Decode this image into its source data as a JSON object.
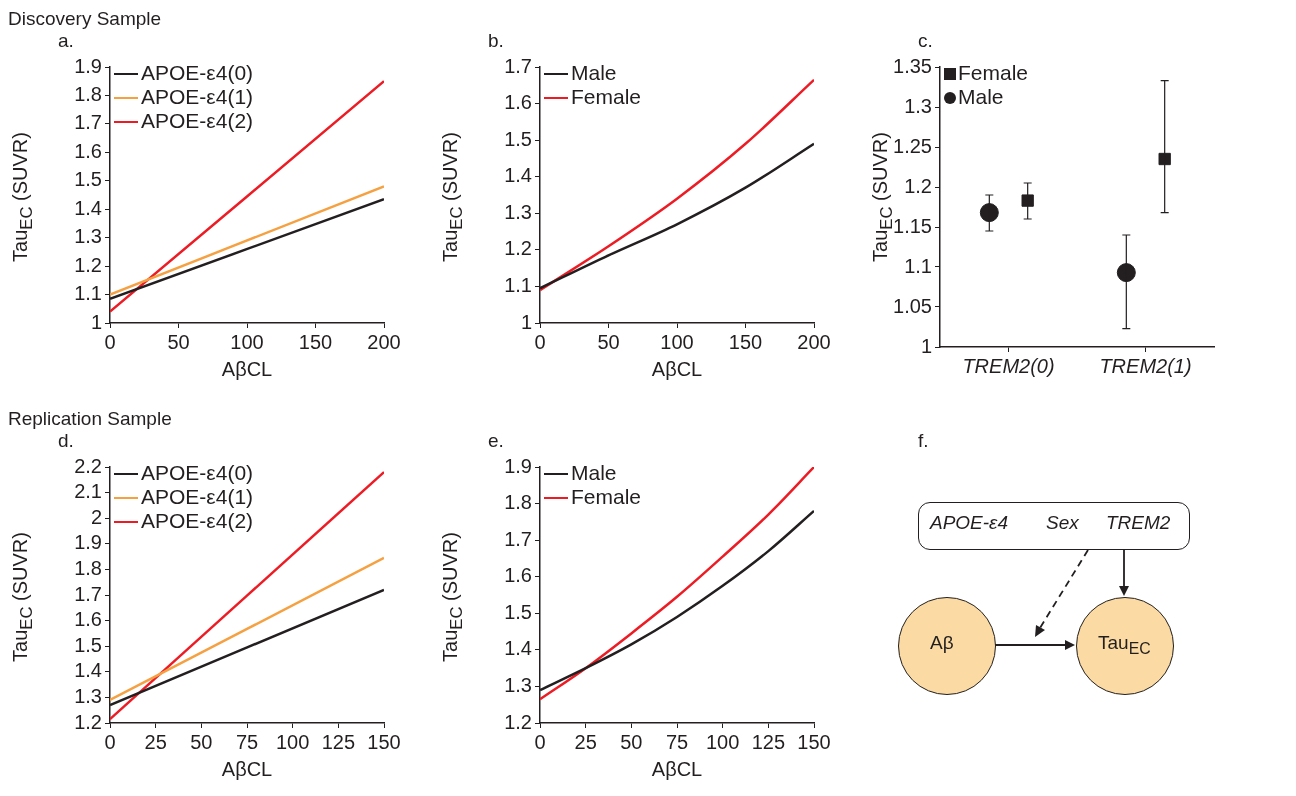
{
  "chart_data": [
    {
      "type": "line",
      "title": "a.",
      "annotations": [
        "Discovery Sample"
      ],
      "xlabel": "AβCL",
      "ylabel": "Tau$_{EC}$ (SUVR)",
      "xlim": [
        0,
        200
      ],
      "xticks": [
        0,
        50,
        100,
        150,
        200
      ],
      "ylim": [
        1,
        1.9
      ],
      "yticks": [
        1,
        1.1,
        1.2,
        1.3,
        1.4,
        1.5,
        1.6,
        1.7,
        1.8,
        1.9
      ],
      "legend": "top left",
      "marker": "none",
      "series": [
        {
          "name": "APOE-ε4(0)",
          "color": "#231f20",
          "x": [
            0,
            200
          ],
          "values": [
            1.085,
            1.435
          ]
        },
        {
          "name": "APOE-ε4(1)",
          "color": "#f5a142",
          "x": [
            0,
            200
          ],
          "values": [
            1.1,
            1.48
          ]
        },
        {
          "name": "APOE-ε4(2)",
          "color": "#ed1c24",
          "x": [
            0,
            200
          ],
          "values": [
            1.04,
            1.85
          ]
        }
      ]
    },
    {
      "type": "line",
      "title": "b.",
      "xlabel": "AβCL",
      "ylabel": "Tau$_{EC}$ (SUVR)",
      "xlim": [
        0,
        200
      ],
      "xticks": [
        0,
        50,
        100,
        150,
        200
      ],
      "ylim": [
        1,
        1.7
      ],
      "yticks": [
        1,
        1.1,
        1.2,
        1.3,
        1.4,
        1.5,
        1.6,
        1.7
      ],
      "legend": "top left",
      "marker": "none",
      "series": [
        {
          "name": "Male",
          "color": "#231f20",
          "x": [
            0,
            50,
            100,
            150,
            200
          ],
          "values": [
            1.095,
            1.185,
            1.27,
            1.37,
            1.49
          ]
        },
        {
          "name": "Female",
          "color": "#ed1c24",
          "x": [
            0,
            50,
            100,
            150,
            200
          ],
          "values": [
            1.09,
            1.21,
            1.34,
            1.49,
            1.665
          ]
        }
      ]
    },
    {
      "type": "scatter",
      "title": "c.",
      "ylabel": "Tau$_{EC}$ (SUVR)",
      "categories": [
        "TREM2(0)",
        "TREM2(1)"
      ],
      "ylim": [
        1,
        1.35
      ],
      "yticks": [
        1,
        1.05,
        1.1,
        1.15,
        1.2,
        1.25,
        1.3,
        1.35
      ],
      "legend": "top left",
      "series": [
        {
          "name": "Female",
          "color": "#231f20",
          "marker": "square",
          "values": [
            1.183,
            1.235
          ],
          "errors": [
            [
              1.16,
              1.205
            ],
            [
              1.168,
              1.333
            ]
          ]
        },
        {
          "name": "Male",
          "color": "#231f20",
          "marker": "circle",
          "values": [
            1.168,
            1.093
          ],
          "errors": [
            [
              1.145,
              1.19
            ],
            [
              1.023,
              1.14
            ]
          ]
        }
      ]
    },
    {
      "type": "line",
      "title": "d.",
      "annotations": [
        "Replication Sample"
      ],
      "xlabel": "AβCL",
      "ylabel": "Tau$_{EC}$ (SUVR)",
      "xlim": [
        0,
        150
      ],
      "xticks": [
        0,
        25,
        50,
        75,
        100,
        125,
        150
      ],
      "ylim": [
        1.2,
        2.2
      ],
      "yticks": [
        1.2,
        1.3,
        1.4,
        1.5,
        1.6,
        1.7,
        1.8,
        1.9,
        2,
        2.1,
        2.2
      ],
      "legend": "top left",
      "marker": "none",
      "series": [
        {
          "name": "APOE-ε4(0)",
          "color": "#231f20",
          "x": [
            0,
            150
          ],
          "values": [
            1.27,
            1.72
          ]
        },
        {
          "name": "APOE-ε4(1)",
          "color": "#f5a142",
          "x": [
            0,
            150
          ],
          "values": [
            1.29,
            1.845
          ]
        },
        {
          "name": "APOE-ε4(2)",
          "color": "#ed1c24",
          "x": [
            0,
            150
          ],
          "values": [
            1.215,
            2.18
          ]
        }
      ]
    },
    {
      "type": "line",
      "title": "e.",
      "xlabel": "AβCL",
      "ylabel": "Tau$_{EC}$ (SUVR)",
      "xlim": [
        0,
        150
      ],
      "xticks": [
        0,
        25,
        50,
        75,
        100,
        125,
        150
      ],
      "ylim": [
        1.2,
        1.9
      ],
      "yticks": [
        1.2,
        1.3,
        1.4,
        1.5,
        1.6,
        1.7,
        1.8,
        1.9
      ],
      "legend": "top left",
      "marker": "none",
      "series": [
        {
          "name": "Male",
          "color": "#231f20",
          "x": [
            0,
            25,
            50,
            75,
            100,
            125,
            150
          ],
          "values": [
            1.29,
            1.35,
            1.415,
            1.49,
            1.575,
            1.67,
            1.78
          ]
        },
        {
          "name": "Female",
          "color": "#ed1c24",
          "x": [
            0,
            25,
            50,
            75,
            100,
            125,
            150
          ],
          "values": [
            1.265,
            1.35,
            1.445,
            1.545,
            1.655,
            1.77,
            1.9
          ]
        }
      ]
    },
    {
      "type": "other",
      "title": "f.",
      "annotations": [
        "APOE-ε4",
        "Sex",
        "TREM2",
        "Aβ",
        "Tau$_{EC}$"
      ]
    }
  ]
}
